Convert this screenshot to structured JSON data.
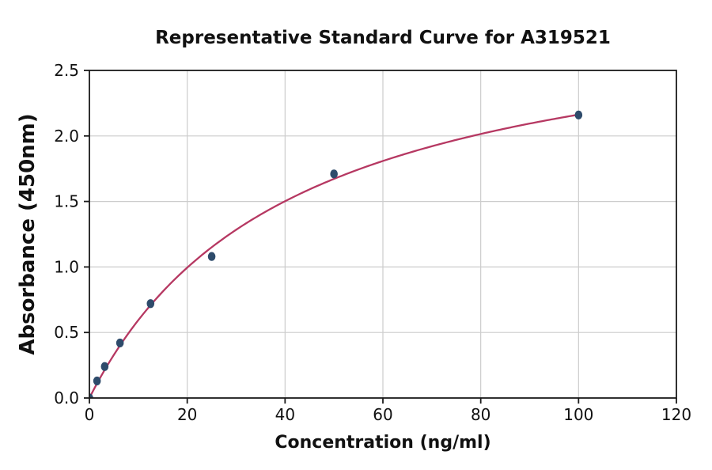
{
  "chart_data": {
    "type": "scatter",
    "title": "Representative Standard Curve for A319521",
    "xlabel": "Concentration (ng/ml)",
    "ylabel": "Absorbance (450nm)",
    "xlim": [
      0,
      120
    ],
    "ylim": [
      0,
      2.5
    ],
    "grid": true,
    "legend": "none",
    "x_ticks": {
      "values": [
        0,
        20,
        40,
        60,
        80,
        100,
        120
      ],
      "labels": [
        "0",
        "20",
        "40",
        "60",
        "80",
        "100",
        "120"
      ]
    },
    "y_ticks": {
      "values": [
        0,
        0.5,
        1,
        1.5,
        2,
        2.5
      ],
      "labels": [
        "0.0",
        "0.5",
        "1.0",
        "1.5",
        "2.0",
        "2.5"
      ]
    },
    "series": [
      {
        "name": "standard-points",
        "type": "scatter",
        "points": [
          {
            "x": 0,
            "y": 0.0
          },
          {
            "x": 1.56,
            "y": 0.13
          },
          {
            "x": 3.13,
            "y": 0.24
          },
          {
            "x": 6.25,
            "y": 0.42
          },
          {
            "x": 12.5,
            "y": 0.72
          },
          {
            "x": 25,
            "y": 1.08
          },
          {
            "x": 50,
            "y": 1.71
          },
          {
            "x": 100,
            "y": 2.16
          }
        ]
      },
      {
        "name": "fit-curve",
        "type": "line",
        "fit": {
          "model": "michaelis_menten",
          "vmax": 3.06,
          "km": 41.5,
          "x_start": 0,
          "x_end": 100
        }
      }
    ],
    "colors": {
      "curve": "#b63862",
      "marker": "#2e4b6b",
      "grid": "#cccccc",
      "axis": "#1a1a1a",
      "background": "#ffffff"
    }
  }
}
